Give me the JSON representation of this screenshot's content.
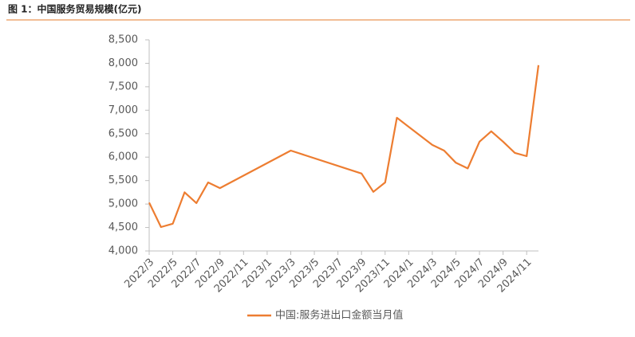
{
  "chart_data": {
    "type": "line",
    "title": "图 1：中国服务贸易规模(亿元)",
    "x": [
      "2022/3",
      "2022/4",
      "2022/5",
      "2022/6",
      "2022/7",
      "2022/8",
      "2022/9",
      "2023/3",
      "2023/9",
      "2023/10",
      "2023/11",
      "2023/12",
      "2024/3",
      "2024/4",
      "2024/5",
      "2024/6",
      "2024/7",
      "2024/8",
      "2024/9",
      "2024/10",
      "2024/11",
      "2024/12"
    ],
    "series": [
      {
        "name": "中国:服务进出口金额当月值",
        "color": "#ED7D31",
        "values": [
          5030,
          4510,
          4580,
          5250,
          5020,
          5460,
          5340,
          6140,
          5650,
          5260,
          5460,
          6840,
          6260,
          6140,
          5880,
          5760,
          6330,
          6550,
          6330,
          6090,
          6020,
          7960
        ]
      }
    ],
    "xlim": [
      "2022/3",
      "2024/12"
    ],
    "xticks": [
      "2022/3",
      "2022/5",
      "2022/7",
      "2022/9",
      "2022/11",
      "2023/1",
      "2023/3",
      "2023/5",
      "2023/7",
      "2023/9",
      "2023/11",
      "2024/1",
      "2024/3",
      "2024/5",
      "2024/7",
      "2024/9",
      "2024/11"
    ],
    "ylim": [
      4000,
      8500
    ],
    "yticks": [
      {
        "value": 4000,
        "label": "4,000"
      },
      {
        "value": 4500,
        "label": "4,500"
      },
      {
        "value": 5000,
        "label": "5,000"
      },
      {
        "value": 5500,
        "label": "5,500"
      },
      {
        "value": 6000,
        "label": "6,000"
      },
      {
        "value": 6500,
        "label": "6,500"
      },
      {
        "value": 7000,
        "label": "7,000"
      },
      {
        "value": 7500,
        "label": "7,500"
      },
      {
        "value": 8000,
        "label": "8,000"
      },
      {
        "value": 8500,
        "label": "8,500"
      }
    ],
    "grid": false,
    "legend": "bottom"
  }
}
